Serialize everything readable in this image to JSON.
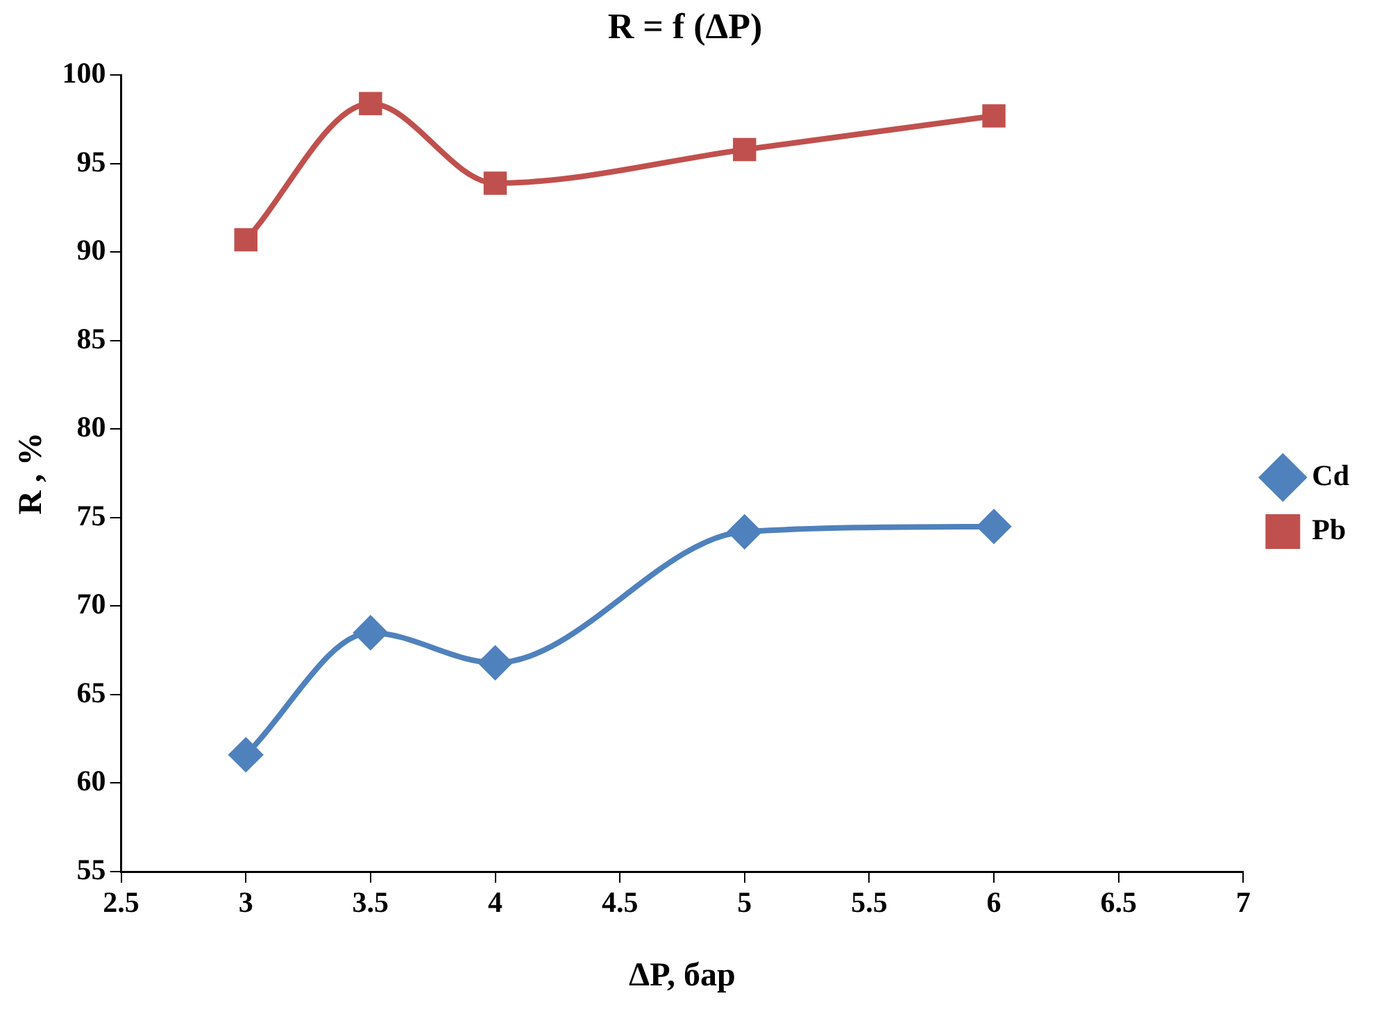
{
  "chart_data": {
    "type": "line",
    "title": "R = f (ΔP)",
    "xlabel": "ΔP, бар",
    "ylabel": "R , %",
    "x": [
      3,
      3.5,
      4,
      5,
      6
    ],
    "series": [
      {
        "name": "Cd",
        "color": "#4f81bd",
        "marker": "diamond",
        "values": [
          61.6,
          68.5,
          66.8,
          74.2,
          74.5
        ]
      },
      {
        "name": "Pb",
        "color": "#c0504d",
        "marker": "square",
        "values": [
          90.7,
          98.4,
          93.9,
          95.8,
          97.7
        ]
      }
    ],
    "xlim": [
      2.5,
      7
    ],
    "xticks": [
      2.5,
      3,
      3.5,
      4,
      4.5,
      5,
      5.5,
      6,
      6.5,
      7
    ],
    "ylim": [
      55,
      100
    ],
    "yticks": [
      55,
      60,
      65,
      70,
      75,
      80,
      85,
      90,
      95,
      100
    ],
    "grid": false,
    "legend": "right"
  }
}
